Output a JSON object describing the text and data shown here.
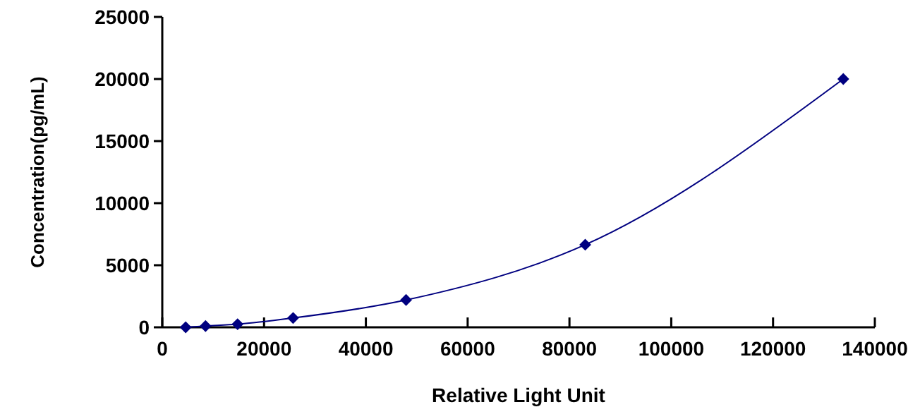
{
  "chart_data": {
    "type": "line",
    "xlabel": "Relative Light Unit",
    "ylabel": "Concentration(pg/mL)",
    "x": [
      4600,
      8500,
      14800,
      25700,
      47900,
      83100,
      133800
    ],
    "series": [
      {
        "color": "#000080",
        "values": [
          0,
          100,
          250,
          750,
          2200,
          6650,
          20000
        ]
      }
    ],
    "xlim": [
      0,
      140000
    ],
    "xticks": [
      0,
      20000,
      40000,
      60000,
      80000,
      100000,
      120000,
      140000
    ],
    "ylim": [
      0,
      25000
    ],
    "yticks": [
      0,
      5000,
      10000,
      15000,
      20000,
      25000
    ],
    "marker": "diamond",
    "line_style": "solid",
    "grid": false
  }
}
